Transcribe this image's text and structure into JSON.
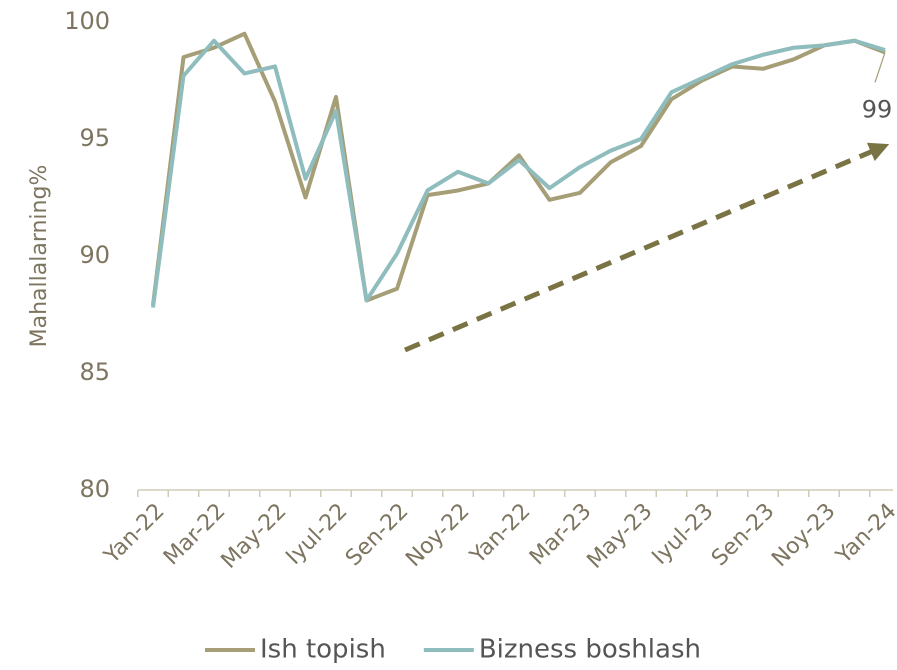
{
  "chart_data": {
    "type": "line",
    "y_label": "Mahallalarning%",
    "categories": [
      "Yan-22",
      null,
      "Mar-22",
      null,
      "May-22",
      null,
      "Iyul-22",
      null,
      "Sen-22",
      null,
      "Noy-22",
      null,
      "Yan-22",
      null,
      "Mar-23",
      null,
      "May-23",
      null,
      "Iyul-23",
      null,
      "Sen-23",
      null,
      "Noy-23",
      null,
      "Yan-24"
    ],
    "series": [
      {
        "name": "Ish topish",
        "color": "#a59e76",
        "values": [
          87.9,
          98.5,
          98.9,
          99.5,
          96.6,
          92.5,
          96.8,
          88.1,
          88.6,
          92.6,
          92.8,
          93.1,
          94.3,
          92.4,
          92.7,
          94.0,
          94.7,
          96.7,
          97.5,
          98.1,
          98.0,
          98.4,
          99.0,
          99.2,
          98.7
        ]
      },
      {
        "name": "Bizness boshlash",
        "color": "#8fbcbc",
        "values": [
          87.8,
          97.7,
          99.2,
          97.8,
          98.1,
          93.3,
          96.2,
          88.1,
          90.1,
          92.8,
          93.6,
          93.1,
          94.1,
          92.9,
          93.8,
          94.5,
          95.0,
          97.0,
          97.6,
          98.2,
          98.6,
          98.9,
          99.0,
          99.2,
          98.8
        ]
      }
    ],
    "annotation": "99",
    "ylim": [
      80,
      100
    ],
    "yticks": [
      80,
      85,
      90,
      95,
      100
    ]
  }
}
